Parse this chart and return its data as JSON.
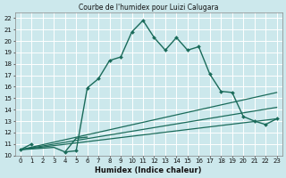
{
  "title": "Courbe de l'humidex pour Luizi Calugara",
  "xlabel": "Humidex (Indice chaleur)",
  "bg_color": "#cce8ec",
  "line_color": "#1a6b5a",
  "grid_color": "#ffffff",
  "xlim": [
    -0.5,
    23.5
  ],
  "ylim": [
    10,
    22.5
  ],
  "xticks": [
    0,
    1,
    2,
    3,
    4,
    5,
    6,
    7,
    8,
    9,
    10,
    11,
    12,
    13,
    14,
    15,
    16,
    17,
    18,
    19,
    20,
    21,
    22,
    23
  ],
  "yticks": [
    10,
    11,
    12,
    13,
    14,
    15,
    16,
    17,
    18,
    19,
    20,
    21,
    22
  ],
  "series": [
    {
      "x": [
        0,
        1,
        2,
        3,
        4,
        5,
        6,
        7,
        8,
        9,
        10,
        11,
        12,
        13,
        14,
        15,
        16,
        17,
        18,
        19,
        20,
        21,
        22,
        23
      ],
      "y": [
        10.5,
        11.0,
        null,
        null,
        10.3,
        10.4,
        15.9,
        16.7,
        18.3,
        18.6,
        20.8,
        21.8,
        20.3,
        19.2,
        20.3,
        19.2,
        19.5,
        17.1,
        15.6,
        15.5,
        13.4,
        13.0,
        12.7,
        13.2
      ],
      "marker": "D",
      "markersize": 2.0,
      "linewidth": 1.0
    },
    {
      "x": [
        0,
        3,
        4,
        5,
        6
      ],
      "y": [
        10.5,
        10.7,
        10.3,
        11.5,
        11.6
      ],
      "marker": null,
      "markersize": 0,
      "linewidth": 1.0
    },
    {
      "x": [
        0,
        23
      ],
      "y": [
        10.5,
        15.5
      ],
      "marker": null,
      "markersize": 0,
      "linewidth": 0.9
    },
    {
      "x": [
        0,
        23
      ],
      "y": [
        10.5,
        14.2
      ],
      "marker": null,
      "markersize": 0,
      "linewidth": 0.9
    },
    {
      "x": [
        0,
        23
      ],
      "y": [
        10.5,
        13.2
      ],
      "marker": null,
      "markersize": 0,
      "linewidth": 0.9
    }
  ]
}
